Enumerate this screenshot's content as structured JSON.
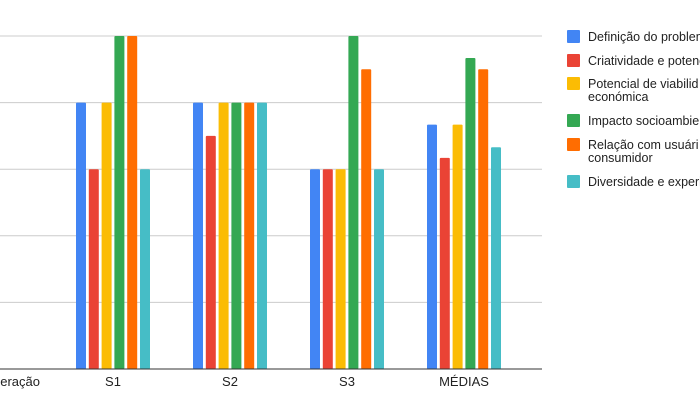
{
  "chart_data": {
    "type": "bar",
    "categories": [
      "S1",
      "S2",
      "S3",
      "MÉDIAS"
    ],
    "left_category_label": "Ponderação",
    "series": [
      {
        "name": "Definição do problema",
        "color": "#4285F4",
        "values": [
          4,
          4,
          3,
          3.67
        ]
      },
      {
        "name": "Criatividade e potencial",
        "color": "#EA4335",
        "values": [
          3,
          3.5,
          3,
          3.17
        ]
      },
      {
        "name": "Potencial de viabilidade económica",
        "legend_lines": [
          "Potencial de viabilid",
          "económica"
        ],
        "color": "#FBBC04",
        "values": [
          4,
          4,
          3,
          3.67
        ]
      },
      {
        "name": "Impacto socioambiental",
        "color": "#34A853",
        "values": [
          5,
          4,
          5,
          4.67
        ]
      },
      {
        "name": "Relação com usuário consumidor",
        "legend_lines": [
          "Relação com usuári",
          "consumidor"
        ],
        "color": "#FF6D01",
        "values": [
          5,
          4,
          4.5,
          4.5
        ]
      },
      {
        "name": "Diversidade e experiência",
        "color": "#46BDC6",
        "values": [
          3,
          4,
          3,
          3.33
        ]
      }
    ],
    "ylim": [
      0,
      5.5
    ],
    "gridlines": [
      1,
      2,
      3,
      4,
      5
    ],
    "grid": true,
    "legend_position": "right"
  }
}
